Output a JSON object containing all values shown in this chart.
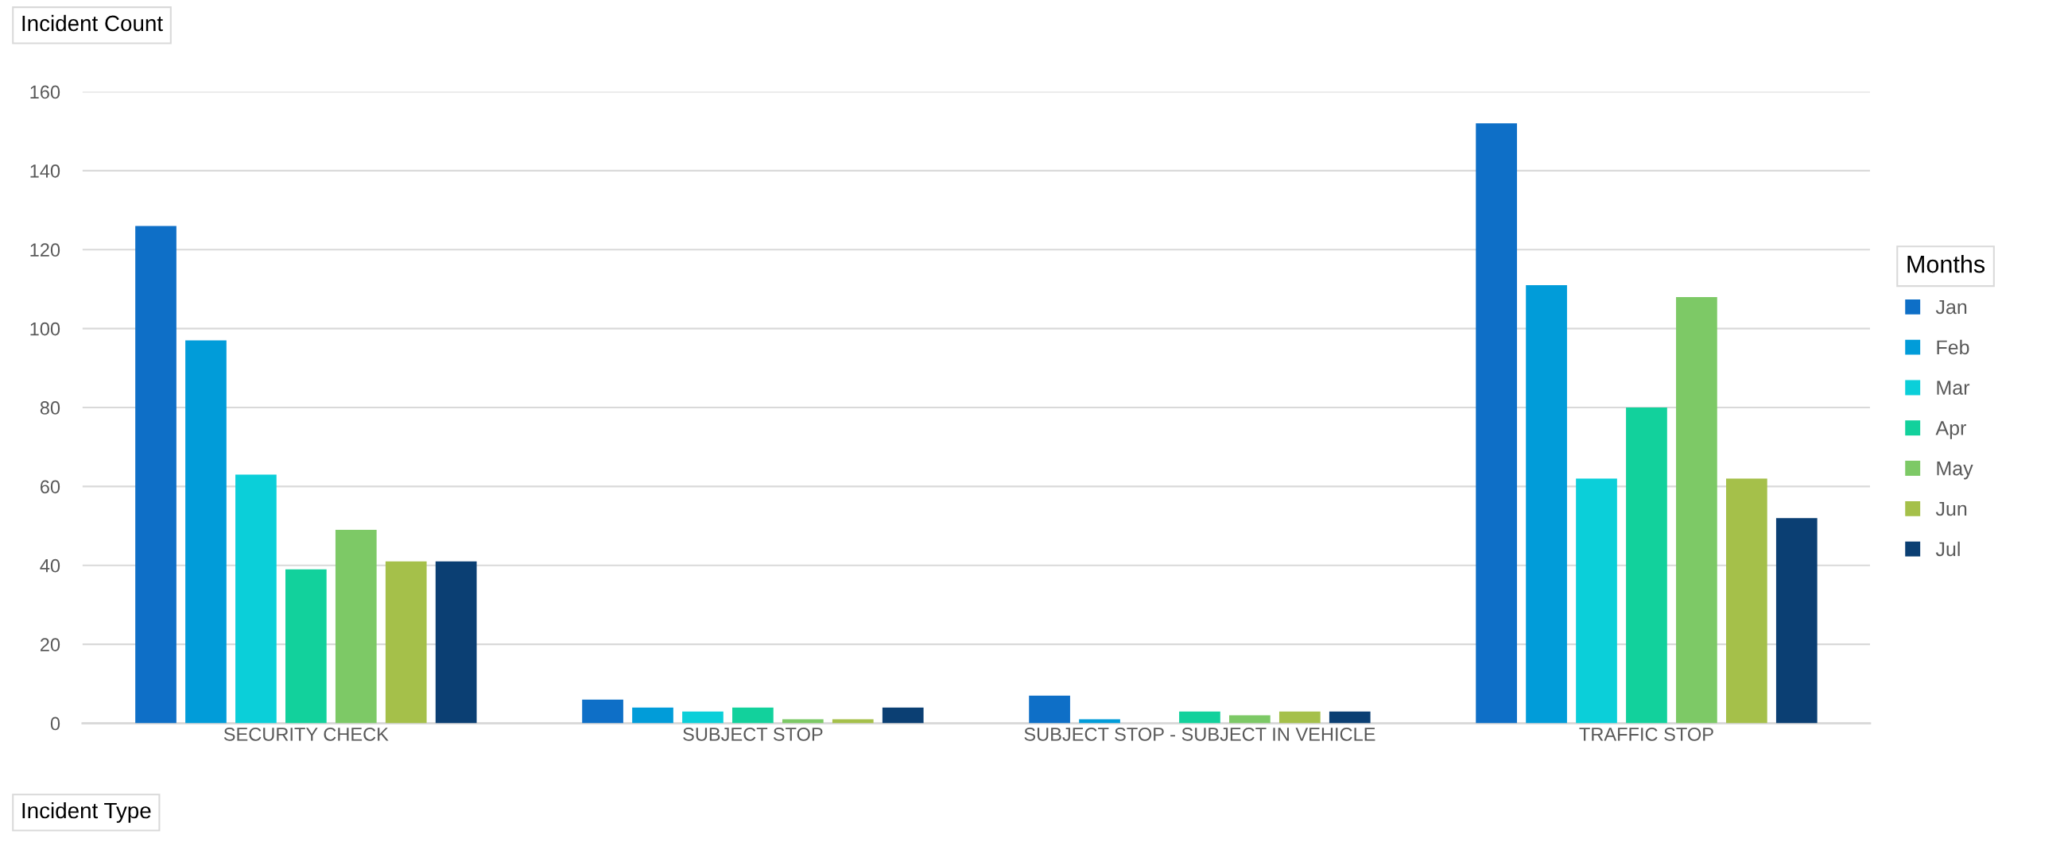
{
  "chart_data": {
    "type": "bar",
    "xlabel": "Incident Type",
    "ylabel": "Incident Count",
    "legend_title": "Months",
    "legend": "right",
    "grid": "y",
    "categories": [
      "SECURITY CHECK",
      "SUBJECT STOP",
      "SUBJECT STOP - SUBJECT IN VEHICLE",
      "TRAFFIC STOP"
    ],
    "ylim": [
      0,
      160
    ],
    "yticks": [
      0,
      20,
      40,
      60,
      80,
      100,
      120,
      140,
      160
    ],
    "series": [
      {
        "name": "Jan",
        "color": "#0e6fc7",
        "values": [
          126,
          6,
          7,
          152
        ]
      },
      {
        "name": "Feb",
        "color": "#019cd9",
        "values": [
          97,
          4,
          1,
          111
        ]
      },
      {
        "name": "Mar",
        "color": "#0bcfd9",
        "values": [
          63,
          3,
          0,
          62
        ]
      },
      {
        "name": "Apr",
        "color": "#12d19c",
        "values": [
          39,
          4,
          3,
          80
        ]
      },
      {
        "name": "May",
        "color": "#7dc966",
        "values": [
          49,
          1,
          2,
          108
        ]
      },
      {
        "name": "Jun",
        "color": "#a5c04a",
        "values": [
          41,
          1,
          3,
          62
        ]
      },
      {
        "name": "Jul",
        "color": "#0b3f73",
        "values": [
          41,
          4,
          3,
          52
        ]
      }
    ]
  }
}
